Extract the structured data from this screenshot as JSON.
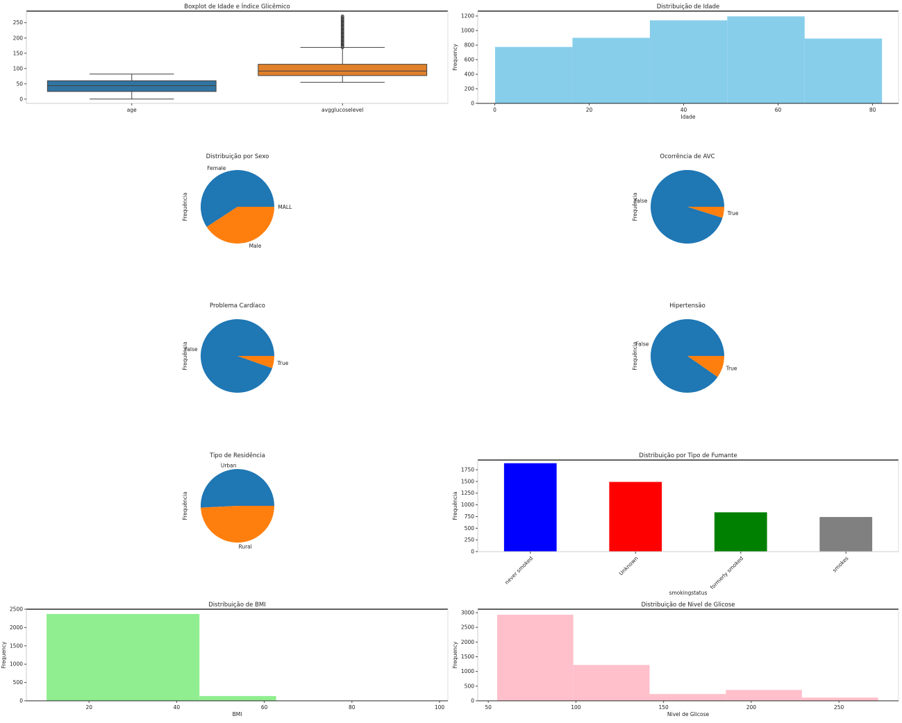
{
  "chart_data": [
    {
      "type": "box",
      "title": "Boxplot de Idade e Índice Glicêmico",
      "categories": [
        "age",
        "avgglucoselevel"
      ],
      "boxes": [
        {
          "whisker_low": 0.08,
          "q1": 25,
          "median": 44,
          "q3": 60,
          "whisker_high": 82,
          "color": "#3274a1"
        },
        {
          "whisker_low": 55,
          "q1": 77,
          "median": 92,
          "q3": 114,
          "whisker_high": 169,
          "color": "#e1812c",
          "outliers_range": [
            169,
            272
          ]
        }
      ],
      "yticks": [
        0,
        50,
        100,
        150,
        200,
        250
      ],
      "ylim": [
        -14,
        288
      ]
    },
    {
      "type": "bar",
      "subtype": "histogram",
      "title": "Distribuição de Idade",
      "xlabel": "Idade",
      "ylabel": "Frequency",
      "bins": [
        0.08,
        16.46,
        32.85,
        49.23,
        65.62,
        82
      ],
      "counts": [
        775,
        900,
        1140,
        1195,
        890
      ],
      "color": "#87ceeb",
      "xticks": [
        0,
        20,
        40,
        60,
        80
      ],
      "yticks": [
        0,
        200,
        400,
        600,
        800,
        1000,
        1200
      ],
      "xlim": [
        -3.6,
        85.5
      ],
      "ylim": [
        0,
        1267
      ]
    },
    {
      "type": "pie",
      "title": "Distribuição por Sexo",
      "ylabel": "Frequência",
      "labels": [
        "Female",
        "Male",
        "MALL"
      ],
      "values": [
        0.592,
        0.4078,
        0.0002
      ],
      "colors": [
        "#1f77b4",
        "#ff7f0e",
        "#2ca02c"
      ]
    },
    {
      "type": "pie",
      "title": "Ocorrência de AVC",
      "ylabel": "Frequência",
      "labels": [
        "False",
        "True"
      ],
      "values": [
        0.951,
        0.049
      ],
      "colors": [
        "#1f77b4",
        "#ff7f0e"
      ]
    },
    {
      "type": "pie",
      "title": "Problema Cardíaco",
      "ylabel": "Frequência",
      "labels": [
        "False",
        "True"
      ],
      "values": [
        0.946,
        0.054
      ],
      "colors": [
        "#1f77b4",
        "#ff7f0e"
      ]
    },
    {
      "type": "pie",
      "title": "Hipertensão",
      "ylabel": "Frequência",
      "labels": [
        "False",
        "True"
      ],
      "values": [
        0.903,
        0.097
      ],
      "colors": [
        "#1f77b4",
        "#ff7f0e"
      ]
    },
    {
      "type": "pie",
      "title": "Tipo de Residência",
      "ylabel": "Frequência",
      "labels": [
        "Urban",
        "Rural"
      ],
      "values": [
        0.508,
        0.492
      ],
      "colors": [
        "#1f77b4",
        "#ff7f0e"
      ]
    },
    {
      "type": "bar",
      "title": "Distribuição por Tipo de Fumante",
      "xlabel": "smokingstatus",
      "ylabel": "Frequência",
      "categories": [
        "never smoked",
        "Unknown",
        "formerly smoked",
        "smokes"
      ],
      "values": [
        1890,
        1490,
        840,
        740
      ],
      "colors": [
        "#0000ff",
        "#ff0000",
        "#008000",
        "#808080"
      ],
      "yticks": [
        0,
        250,
        500,
        750,
        1000,
        1250,
        1500,
        1750
      ],
      "ylim": [
        0,
        1958
      ]
    },
    {
      "type": "bar",
      "subtype": "histogram",
      "title": "Distribuição de BMI",
      "xlabel": "BMI",
      "ylabel": "Frequency",
      "bins": [
        10.3,
        45.2,
        62.7
      ],
      "counts": [
        2370,
        130
      ],
      "color": "#90ee90",
      "xticks": [
        20,
        40,
        60,
        80,
        100
      ],
      "yticks": [
        0,
        500,
        1000,
        1500,
        2000,
        2500
      ],
      "xlim": [
        5.7,
        101.9
      ],
      "ylim": [
        0,
        2500
      ]
    },
    {
      "type": "bar",
      "subtype": "histogram",
      "title": "Distribuição de Nivel de Glicose",
      "xlabel": "Nivel de Glicose",
      "ylabel": "Frequency",
      "bins": [
        55.1,
        98.5,
        142,
        185.5,
        228.9,
        272.4
      ],
      "counts": [
        2930,
        1220,
        230,
        370,
        110
      ],
      "color": "#ffc0cb",
      "xticks": [
        50,
        100,
        150,
        200,
        250
      ],
      "yticks": [
        0,
        500,
        1000,
        1500,
        2000,
        2500,
        3000
      ],
      "xlim": [
        44,
        284
      ],
      "ylim": [
        0,
        3118
      ]
    }
  ]
}
